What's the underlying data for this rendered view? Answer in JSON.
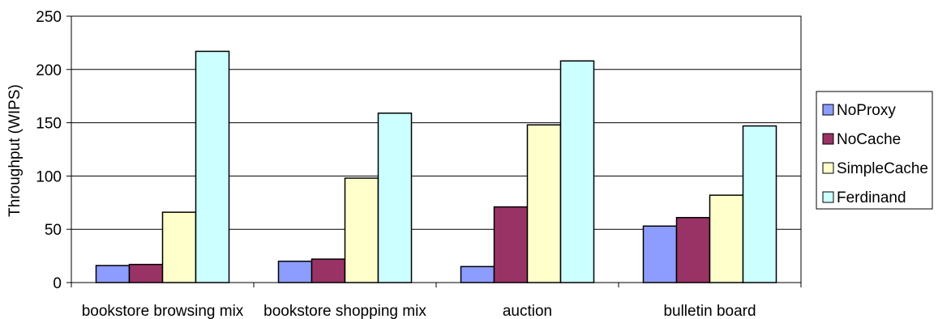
{
  "chart_data": {
    "type": "bar",
    "title": "",
    "xlabel": "",
    "ylabel": "Throughput (WIPS)",
    "ylim": [
      0,
      250
    ],
    "yticks": [
      0,
      50,
      100,
      150,
      200,
      250
    ],
    "grid": true,
    "legend_position": "right",
    "categories": [
      "bookstore browsing mix",
      "bookstore shopping mix",
      "auction",
      "bulletin board"
    ],
    "series": [
      {
        "name": "NoProxy",
        "color": "#8c9cff",
        "values": [
          16,
          20,
          15,
          53
        ]
      },
      {
        "name": "NoCache",
        "color": "#993366",
        "values": [
          17,
          22,
          71,
          61
        ]
      },
      {
        "name": "SimpleCache",
        "color": "#ffffcc",
        "values": [
          66,
          98,
          148,
          82
        ]
      },
      {
        "name": "Ferdinand",
        "color": "#ccffff",
        "values": [
          217,
          159,
          208,
          147
        ]
      }
    ]
  }
}
